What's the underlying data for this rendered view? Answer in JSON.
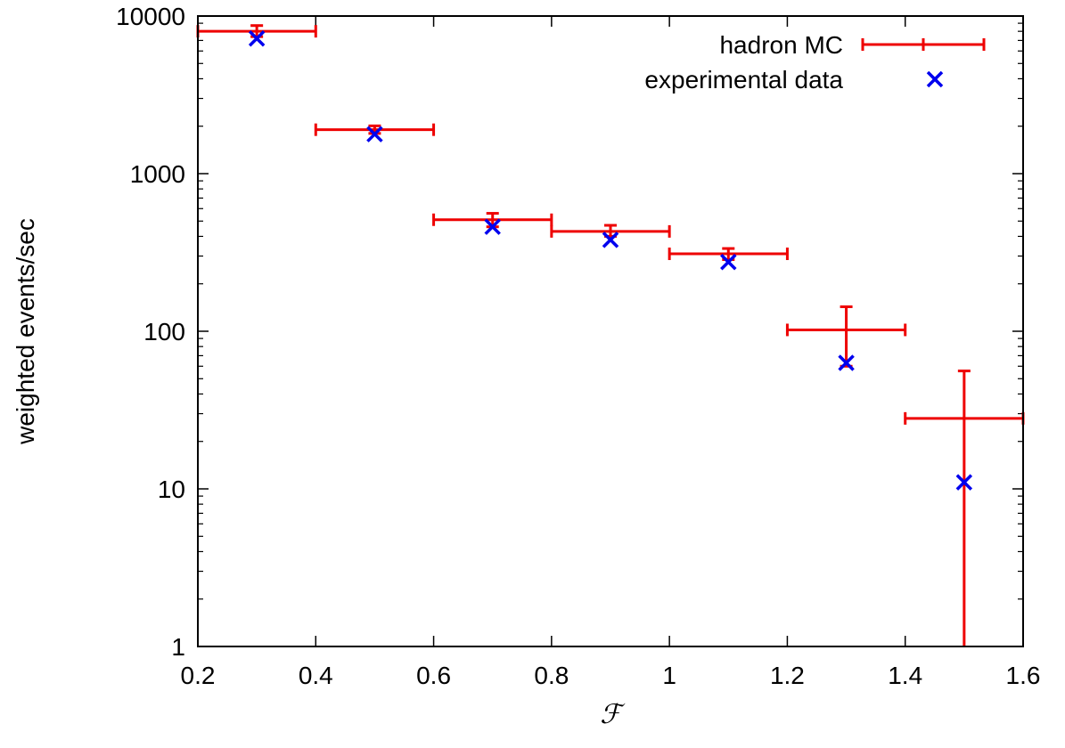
{
  "chart_data": {
    "type": "scatter",
    "xlabel": "ℱ",
    "ylabel": "weighted events/sec",
    "xlim": [
      0.2,
      1.6
    ],
    "ylim": [
      1,
      10000
    ],
    "yscale": "log",
    "grid": false,
    "legend_position": "top-right",
    "x_ticks": [
      0.2,
      0.4,
      0.6,
      0.8,
      1.0,
      1.2,
      1.4,
      1.6
    ],
    "x_tick_labels": [
      "0.2",
      "0.4",
      "0.6",
      "0.8",
      "1",
      "1.2",
      "1.4",
      "1.6"
    ],
    "y_ticks": [
      1,
      10,
      100,
      1000,
      10000
    ],
    "y_tick_labels": [
      "1",
      "10",
      "100",
      "1000",
      "10000"
    ],
    "series": [
      {
        "name": "hadron MC",
        "style": "errorbars",
        "color": "#ee0000",
        "points": [
          {
            "x": 0.3,
            "y": 8000,
            "xlow": 0.2,
            "xhigh": 0.4,
            "ylow": 7400,
            "yhigh": 8700
          },
          {
            "x": 0.5,
            "y": 1900,
            "xlow": 0.4,
            "xhigh": 0.6,
            "ylow": 1800,
            "yhigh": 2010
          },
          {
            "x": 0.7,
            "y": 510,
            "xlow": 0.6,
            "xhigh": 0.8,
            "ylow": 460,
            "yhigh": 560
          },
          {
            "x": 0.9,
            "y": 430,
            "xlow": 0.8,
            "xhigh": 1.0,
            "ylow": 400,
            "yhigh": 470
          },
          {
            "x": 1.1,
            "y": 310,
            "xlow": 1.0,
            "xhigh": 1.2,
            "ylow": 285,
            "yhigh": 335
          },
          {
            "x": 1.3,
            "y": 102,
            "xlow": 1.2,
            "xhigh": 1.4,
            "ylow": 60,
            "yhigh": 143
          },
          {
            "x": 1.5,
            "y": 28,
            "xlow": 1.4,
            "xhigh": 1.6,
            "ylow": 1,
            "yhigh": 56
          }
        ]
      },
      {
        "name": "experimental data",
        "style": "points",
        "marker": "x",
        "color": "#0000ee",
        "points": [
          {
            "x": 0.3,
            "y": 7200
          },
          {
            "x": 0.5,
            "y": 1780
          },
          {
            "x": 0.7,
            "y": 460
          },
          {
            "x": 0.9,
            "y": 380
          },
          {
            "x": 1.1,
            "y": 275
          },
          {
            "x": 1.3,
            "y": 63
          },
          {
            "x": 1.5,
            "y": 11
          }
        ]
      }
    ]
  }
}
